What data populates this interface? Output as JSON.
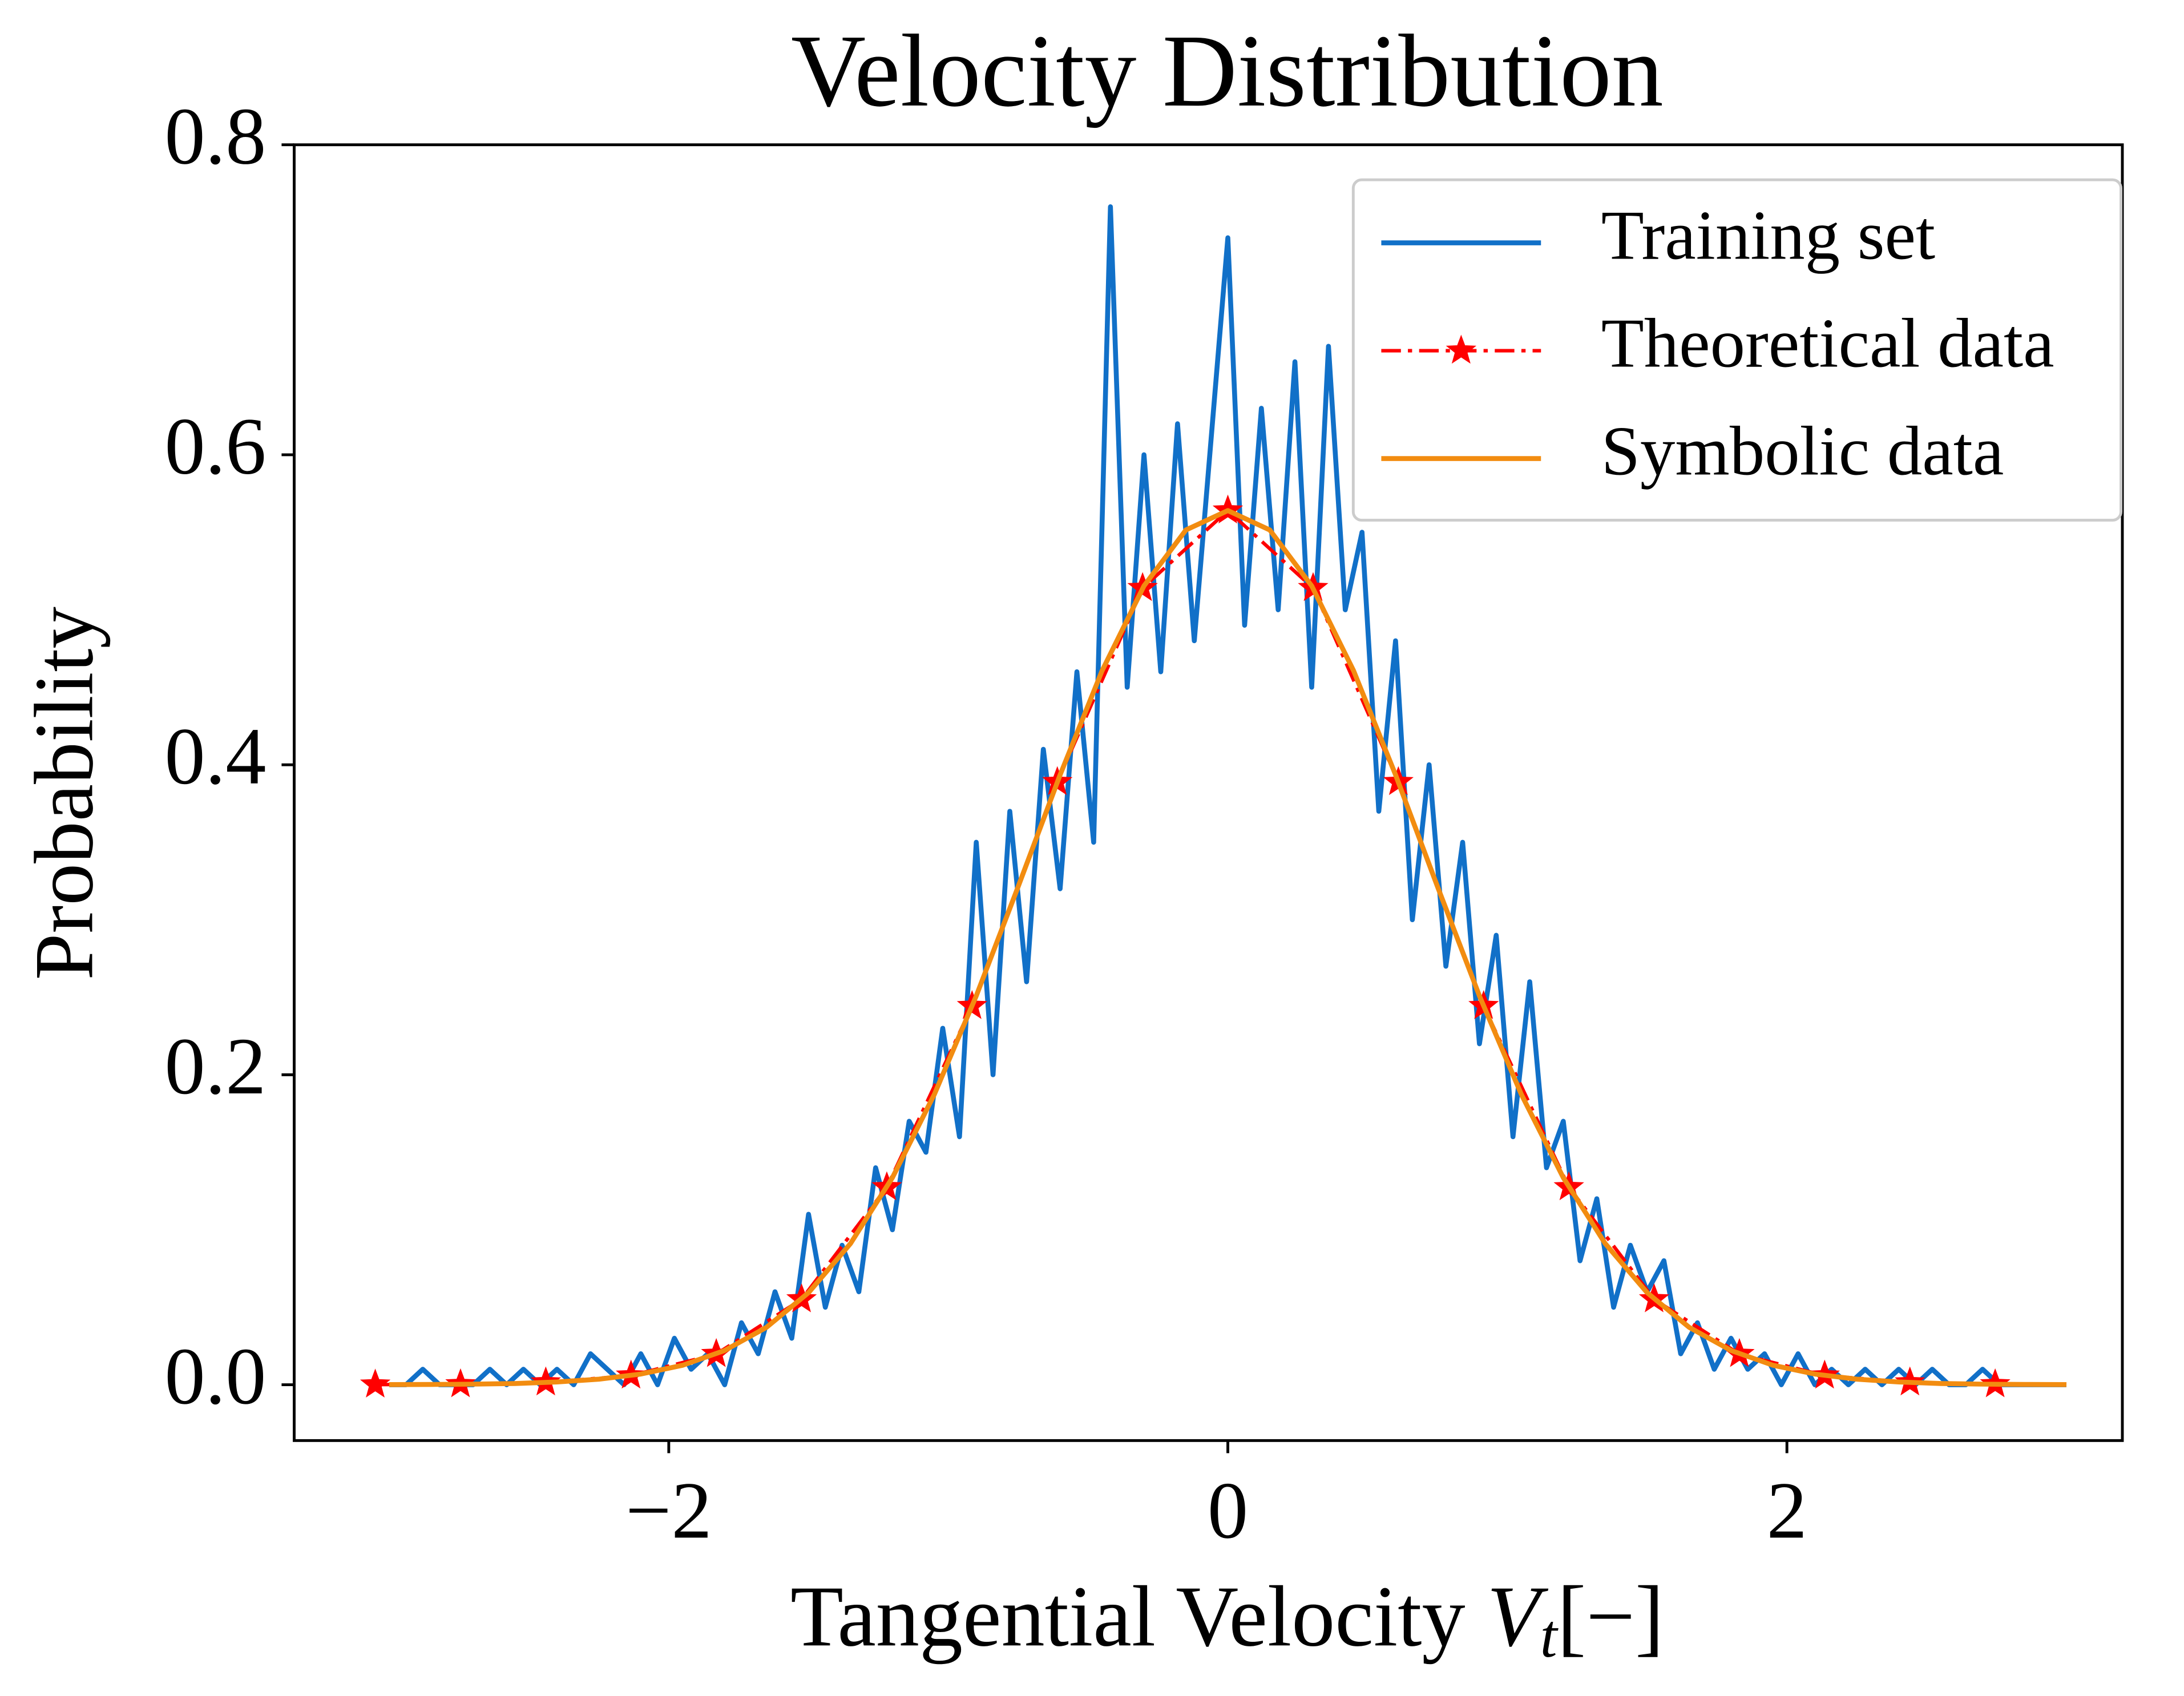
{
  "chart_data": {
    "type": "line",
    "title": "Velocity Distribution",
    "xlabel": {
      "text": "Tangential Velocity ",
      "var": "V",
      "sub": "t",
      "unit": "[−]"
    },
    "ylabel": "Probability",
    "xlim": [
      -3.34,
      3.2
    ],
    "ylim": [
      -0.036,
      0.8
    ],
    "xticks": [
      {
        "value": -2,
        "label": "−2"
      },
      0,
      2
    ],
    "yticks": [
      {
        "value": 0,
        "label": "0.0"
      },
      0.2,
      0.4,
      0.6,
      0.8
    ],
    "grid": false,
    "legend": "upper right",
    "series": [
      {
        "name": "Training set",
        "color": "#1170c8",
        "style": "solid",
        "marker": "none",
        "x": [
          -3.0,
          -2.94,
          -2.88,
          -2.82,
          -2.76,
          -2.7,
          -2.64,
          -2.58,
          -2.52,
          -2.46,
          -2.4,
          -2.34,
          -2.28,
          -2.22,
          -2.16,
          -2.1,
          -2.04,
          -1.98,
          -1.92,
          -1.86,
          -1.8,
          -1.74,
          -1.68,
          -1.62,
          -1.56,
          -1.5,
          -1.44,
          -1.38,
          -1.32,
          -1.26,
          -1.2,
          -1.14,
          -1.08,
          -1.02,
          -0.96,
          -0.9,
          -0.84,
          -0.78,
          -0.72,
          -0.66,
          -0.6,
          -0.54,
          -0.48,
          -0.42,
          -0.36,
          -0.3,
          -0.24,
          -0.18,
          -0.12,
          -0.06,
          0,
          0.06,
          0.12,
          0.18,
          0.24,
          0.3,
          0.36,
          0.42,
          0.48,
          0.54,
          0.6,
          0.66,
          0.72,
          0.78,
          0.84,
          0.9,
          0.96,
          1.02,
          1.08,
          1.14,
          1.2,
          1.26,
          1.32,
          1.38,
          1.44,
          1.5,
          1.56,
          1.62,
          1.68,
          1.74,
          1.8,
          1.86,
          1.92,
          1.98,
          2.04,
          2.1,
          2.16,
          2.22,
          2.28,
          2.34,
          2.4,
          2.46,
          2.52,
          2.58,
          2.64,
          2.7,
          2.76,
          2.82,
          2.88,
          2.94,
          3.0
        ],
        "values": [
          0,
          0,
          0.01,
          0,
          0,
          0,
          0.01,
          0,
          0.01,
          0,
          0.01,
          0,
          0.02,
          0.01,
          0,
          0.02,
          0,
          0.03,
          0.01,
          0.02,
          0,
          0.04,
          0.02,
          0.06,
          0.03,
          0.11,
          0.05,
          0.09,
          0.06,
          0.14,
          0.1,
          0.17,
          0.15,
          0.23,
          0.16,
          0.35,
          0.2,
          0.37,
          0.26,
          0.41,
          0.32,
          0.46,
          0.35,
          0.76,
          0.45,
          0.6,
          0.46,
          0.62,
          0.48,
          0.61,
          0.74,
          0.49,
          0.63,
          0.5,
          0.66,
          0.45,
          0.67,
          0.5,
          0.55,
          0.37,
          0.48,
          0.3,
          0.4,
          0.27,
          0.35,
          0.22,
          0.29,
          0.16,
          0.26,
          0.14,
          0.17,
          0.08,
          0.12,
          0.05,
          0.09,
          0.06,
          0.08,
          0.02,
          0.04,
          0.01,
          0.03,
          0.01,
          0.02,
          0,
          0.02,
          0,
          0.01,
          0,
          0.01,
          0,
          0.01,
          0,
          0.01,
          0,
          0,
          0.01,
          0,
          0,
          0,
          0,
          0
        ]
      },
      {
        "name": "Theoretical data",
        "color": "#ff0000",
        "style": "dashdot",
        "marker": "star",
        "x": [
          -3.05,
          -2.745,
          -2.44,
          -2.135,
          -1.83,
          -1.525,
          -1.22,
          -0.915,
          -0.61,
          -0.305,
          0,
          0.305,
          0.61,
          0.915,
          1.22,
          1.525,
          1.83,
          2.135,
          2.44,
          2.745
        ],
        "values": [
          0.0001,
          0.0003,
          0.0015,
          0.0059,
          0.0198,
          0.0551,
          0.1274,
          0.2443,
          0.3888,
          0.514,
          0.564,
          0.514,
          0.3888,
          0.2443,
          0.1274,
          0.0551,
          0.0198,
          0.0059,
          0.0015,
          0.0003
        ]
      },
      {
        "name": "Symbolic data",
        "color": "#f28c10",
        "style": "solid",
        "marker": "none",
        "x": [
          -3.0,
          -2.85,
          -2.7,
          -2.55,
          -2.4,
          -2.25,
          -2.1,
          -1.95,
          -1.8,
          -1.65,
          -1.5,
          -1.35,
          -1.2,
          -1.05,
          -0.9,
          -0.75,
          -0.6,
          -0.45,
          -0.3,
          -0.15,
          0,
          0.15,
          0.3,
          0.45,
          0.6,
          0.75,
          0.9,
          1.05,
          1.2,
          1.35,
          1.5,
          1.65,
          1.8,
          1.95,
          2.1,
          2.25,
          2.4,
          2.55,
          2.7,
          2.85,
          3.0
        ],
        "values": [
          0.0001,
          0.0002,
          0.0004,
          0.0008,
          0.0018,
          0.0036,
          0.0069,
          0.0126,
          0.0221,
          0.0371,
          0.0594,
          0.0911,
          0.1336,
          0.1873,
          0.2509,
          0.3214,
          0.3935,
          0.4606,
          0.5154,
          0.5515,
          0.564,
          0.5515,
          0.5154,
          0.4606,
          0.3935,
          0.3214,
          0.2509,
          0.1873,
          0.1336,
          0.0911,
          0.0594,
          0.0371,
          0.0221,
          0.0126,
          0.0069,
          0.0036,
          0.0018,
          0.0008,
          0.0004,
          0.0002,
          0.0001
        ]
      }
    ]
  }
}
